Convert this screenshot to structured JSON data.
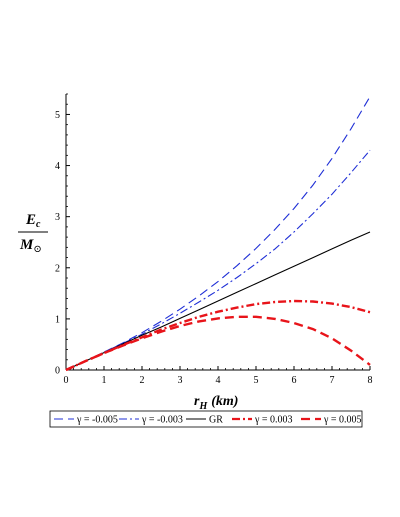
{
  "chart_data": {
    "type": "line",
    "title": "",
    "xlabel": "r",
    "xlabel_sub": "H",
    "xlabel_unit": "(km)",
    "ylabel_num": "E",
    "ylabel_num_sub": "c",
    "ylabel_den": "M",
    "ylabel_den_sub": "⊙",
    "xlim": [
      0,
      8
    ],
    "ylim": [
      0,
      5.4
    ],
    "xticks": [
      0,
      1,
      2,
      3,
      4,
      5,
      6,
      7,
      8
    ],
    "yticks": [
      0,
      1,
      2,
      3,
      4,
      5
    ],
    "grid": false,
    "legend_position": "bottom",
    "x": [
      0,
      0.5,
      1,
      1.5,
      2,
      2.5,
      3,
      3.5,
      4,
      4.5,
      5,
      5.5,
      6,
      6.5,
      7,
      7.5,
      8
    ],
    "series": [
      {
        "name": "γ = -0.005",
        "color": "#1f2fd6",
        "dash": "long-dash",
        "values": [
          0,
          0.17,
          0.35,
          0.53,
          0.73,
          0.95,
          1.19,
          1.45,
          1.73,
          2.04,
          2.38,
          2.75,
          3.16,
          3.62,
          4.14,
          4.72,
          5.35
        ]
      },
      {
        "name": "γ = -0.003",
        "color": "#1f2fd6",
        "dash": "dash-dot",
        "values": [
          0,
          0.17,
          0.35,
          0.52,
          0.7,
          0.9,
          1.11,
          1.33,
          1.56,
          1.81,
          2.08,
          2.37,
          2.7,
          3.06,
          3.44,
          3.86,
          4.3
        ]
      },
      {
        "name": "GR",
        "color": "#000000",
        "dash": "solid",
        "values": [
          0,
          0.17,
          0.34,
          0.51,
          0.68,
          0.84,
          1.01,
          1.18,
          1.35,
          1.52,
          1.69,
          1.86,
          2.03,
          2.2,
          2.37,
          2.54,
          2.7
        ]
      },
      {
        "name": "γ = 0.003",
        "color": "#e8141a",
        "dash": "dash-dot",
        "values": [
          0,
          0.17,
          0.33,
          0.49,
          0.64,
          0.79,
          0.92,
          1.04,
          1.14,
          1.22,
          1.29,
          1.33,
          1.35,
          1.34,
          1.3,
          1.23,
          1.13
        ]
      },
      {
        "name": "γ = 0.005",
        "color": "#e8141a",
        "dash": "long-dash",
        "values": [
          0,
          0.17,
          0.33,
          0.48,
          0.62,
          0.75,
          0.86,
          0.95,
          1.01,
          1.04,
          1.04,
          1.0,
          0.92,
          0.8,
          0.62,
          0.38,
          0.1
        ]
      }
    ]
  }
}
